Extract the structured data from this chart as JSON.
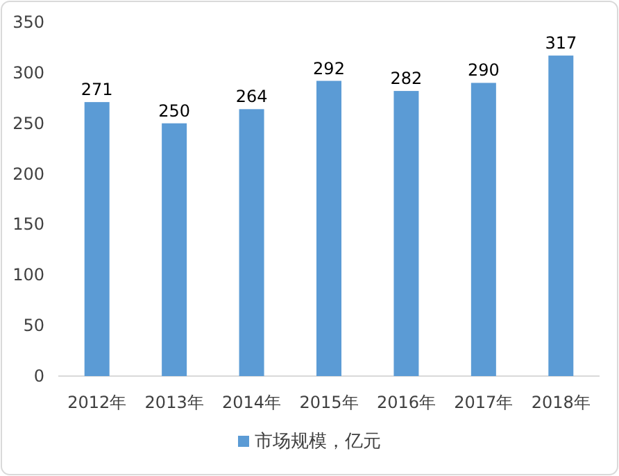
{
  "chart_data": {
    "type": "bar",
    "categories": [
      "2012年",
      "2013年",
      "2014年",
      "2015年",
      "2016年",
      "2017年",
      "2018年"
    ],
    "series": [
      {
        "name": "市场规模，亿元",
        "color": "#5b9bd5",
        "values": [
          271,
          250,
          264,
          292,
          282,
          290,
          317
        ]
      }
    ],
    "ylim": [
      0,
      350
    ],
    "yticks": [
      0,
      50,
      100,
      150,
      200,
      250,
      300,
      350
    ],
    "data_labels": true,
    "legend": "bottom",
    "grid": false
  }
}
